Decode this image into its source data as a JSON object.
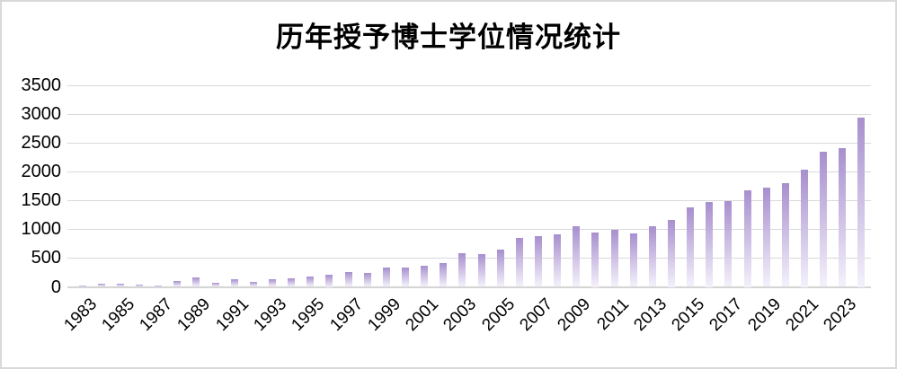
{
  "title": "历年授予博士学位情况统计",
  "chart_data": {
    "type": "bar",
    "title": "历年授予博士学位情况统计",
    "xlabel": "",
    "ylabel": "",
    "ylim": [
      0,
      3500
    ],
    "y_ticks": [
      0,
      500,
      1000,
      1500,
      2000,
      2500,
      3000,
      3500
    ],
    "grid": true,
    "legend": "none",
    "categories": [
      1983,
      1984,
      1985,
      1986,
      1987,
      1988,
      1989,
      1990,
      1991,
      1992,
      1993,
      1994,
      1995,
      1996,
      1997,
      1998,
      1999,
      2000,
      2001,
      2002,
      2003,
      2004,
      2005,
      2006,
      2007,
      2008,
      2009,
      2010,
      2011,
      2012,
      2013,
      2014,
      2015,
      2016,
      2017,
      2018,
      2019,
      2020,
      2021,
      2022,
      2023,
      2024
    ],
    "values": [
      25,
      55,
      60,
      45,
      25,
      100,
      165,
      65,
      130,
      80,
      130,
      145,
      185,
      210,
      260,
      240,
      330,
      335,
      370,
      405,
      590,
      575,
      645,
      845,
      885,
      915,
      1045,
      945,
      995,
      930,
      1055,
      1155,
      1370,
      1470,
      1490,
      1680,
      1725,
      1795,
      2030,
      2335,
      2400,
      2940
    ],
    "x_tick_labels": [
      "1983",
      "1985",
      "1987",
      "1989",
      "1991",
      "1993",
      "1995",
      "1997",
      "1999",
      "2001",
      "2003",
      "2005",
      "2007",
      "2009",
      "2011",
      "2013",
      "2015",
      "2017",
      "2019",
      "2021",
      "2023"
    ],
    "colors": {
      "bar_top": "#a78fce",
      "bar_bottom": "#f4f1fb",
      "gridline": "#d9d9d9",
      "axis_line": "#d5d5d5",
      "text": "#000000",
      "frame_border": "#d9d9d9",
      "background": "#ffffff"
    }
  }
}
